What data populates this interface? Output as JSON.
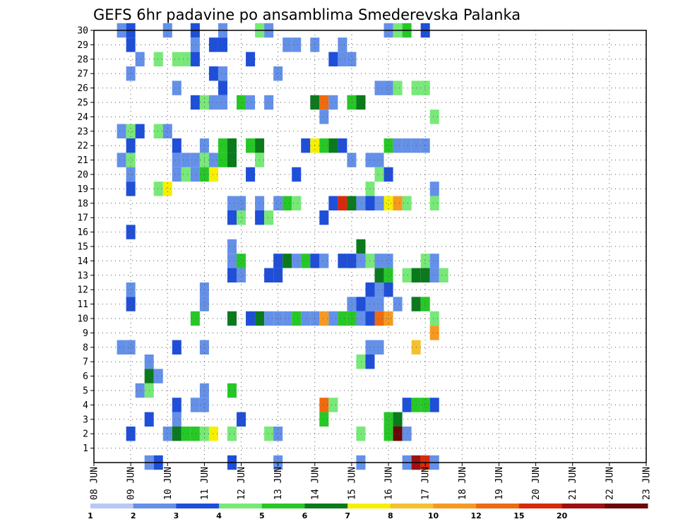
{
  "chart_data": {
    "type": "heatmap",
    "title": "GEFS 6hr padavine po ansamblima Smederevska Palanka",
    "xlabel": "",
    "ylabel": "",
    "x_ticks": [
      "08 JUN",
      "09 JUN",
      "10 JUN",
      "11 JUN",
      "12 JUN",
      "13 JUN",
      "14 JUN",
      "15 JUN",
      "16 JUN",
      "17 JUN",
      "18 JUN",
      "19 JUN",
      "20 JUN",
      "21 JUN",
      "22 JUN",
      "23 JUN"
    ],
    "y_ticks": [
      "1",
      "2",
      "3",
      "4",
      "5",
      "6",
      "7",
      "8",
      "9",
      "10",
      "11",
      "12",
      "13",
      "14",
      "15",
      "16",
      "17",
      "18",
      "19",
      "20",
      "21",
      "22",
      "23",
      "24",
      "25",
      "26",
      "27",
      "28",
      "29",
      "30"
    ],
    "xlim": [
      0,
      60
    ],
    "ylim": [
      0,
      30
    ],
    "grid": true,
    "color_scale": {
      "levels": [
        "1",
        "2",
        "3",
        "4",
        "5",
        "6",
        "7",
        "8",
        "10",
        "12",
        "15",
        "20"
      ],
      "colors": [
        "#b7c9f5",
        "#6490e8",
        "#1f4fd8",
        "#78e878",
        "#26c826",
        "#0a7a1c",
        "#f6f000",
        "#f5c030",
        "#f59a20",
        "#f06a10",
        "#d82a0a",
        "#a01010",
        "#6a0808"
      ]
    },
    "cells": [
      [
        3,
        30,
        1
      ],
      [
        4,
        30,
        2
      ],
      [
        8,
        30,
        1
      ],
      [
        11,
        30,
        2
      ],
      [
        14,
        30,
        1
      ],
      [
        18,
        30,
        3
      ],
      [
        19,
        30,
        1
      ],
      [
        32,
        30,
        1
      ],
      [
        33,
        30,
        3
      ],
      [
        34,
        30,
        4
      ],
      [
        36,
        30,
        2
      ],
      [
        4,
        29,
        2
      ],
      [
        11,
        29,
        1
      ],
      [
        13,
        29,
        2
      ],
      [
        14,
        29,
        2
      ],
      [
        21,
        29,
        1
      ],
      [
        22,
        29,
        1
      ],
      [
        24,
        29,
        1
      ],
      [
        27,
        29,
        1
      ],
      [
        5,
        28,
        1
      ],
      [
        7,
        28,
        3
      ],
      [
        9,
        28,
        3
      ],
      [
        10,
        28,
        3
      ],
      [
        11,
        28,
        2
      ],
      [
        17,
        28,
        2
      ],
      [
        26,
        28,
        2
      ],
      [
        27,
        28,
        1
      ],
      [
        28,
        28,
        1
      ],
      [
        4,
        27,
        1
      ],
      [
        13,
        27,
        2
      ],
      [
        14,
        27,
        1
      ],
      [
        20,
        27,
        1
      ],
      [
        9,
        26,
        1
      ],
      [
        14,
        26,
        2
      ],
      [
        31,
        26,
        1
      ],
      [
        32,
        26,
        1
      ],
      [
        33,
        26,
        3
      ],
      [
        35,
        26,
        3
      ],
      [
        36,
        26,
        3
      ],
      [
        11,
        25,
        2
      ],
      [
        12,
        25,
        3
      ],
      [
        13,
        25,
        1
      ],
      [
        14,
        25,
        1
      ],
      [
        16,
        25,
        4
      ],
      [
        17,
        25,
        1
      ],
      [
        19,
        25,
        1
      ],
      [
        24,
        25,
        5
      ],
      [
        25,
        25,
        9
      ],
      [
        26,
        25,
        1
      ],
      [
        28,
        25,
        4
      ],
      [
        29,
        25,
        5
      ],
      [
        25,
        24,
        1
      ],
      [
        37,
        24,
        3
      ],
      [
        3,
        23,
        1
      ],
      [
        4,
        23,
        3
      ],
      [
        5,
        23,
        2
      ],
      [
        7,
        23,
        3
      ],
      [
        8,
        23,
        1
      ],
      [
        4,
        22,
        2
      ],
      [
        9,
        22,
        2
      ],
      [
        12,
        22,
        1
      ],
      [
        14,
        22,
        4
      ],
      [
        15,
        22,
        5
      ],
      [
        17,
        22,
        4
      ],
      [
        18,
        22,
        5
      ],
      [
        23,
        22,
        2
      ],
      [
        24,
        22,
        6
      ],
      [
        25,
        22,
        4
      ],
      [
        26,
        22,
        5
      ],
      [
        27,
        22,
        2
      ],
      [
        32,
        22,
        4
      ],
      [
        33,
        22,
        1
      ],
      [
        34,
        22,
        1
      ],
      [
        35,
        22,
        1
      ],
      [
        36,
        22,
        1
      ],
      [
        3,
        21,
        1
      ],
      [
        4,
        21,
        3
      ],
      [
        9,
        21,
        1
      ],
      [
        10,
        21,
        1
      ],
      [
        11,
        21,
        1
      ],
      [
        12,
        21,
        3
      ],
      [
        13,
        21,
        1
      ],
      [
        14,
        21,
        4
      ],
      [
        15,
        21,
        5
      ],
      [
        18,
        21,
        3
      ],
      [
        28,
        21,
        1
      ],
      [
        30,
        21,
        1
      ],
      [
        31,
        21,
        1
      ],
      [
        4,
        20,
        1
      ],
      [
        9,
        20,
        1
      ],
      [
        10,
        20,
        3
      ],
      [
        11,
        20,
        1
      ],
      [
        12,
        20,
        4
      ],
      [
        13,
        20,
        6
      ],
      [
        17,
        20,
        2
      ],
      [
        22,
        20,
        2
      ],
      [
        31,
        20,
        3
      ],
      [
        32,
        20,
        2
      ],
      [
        4,
        19,
        2
      ],
      [
        7,
        19,
        3
      ],
      [
        8,
        19,
        6
      ],
      [
        30,
        19,
        3
      ],
      [
        37,
        19,
        1
      ],
      [
        15,
        18,
        1
      ],
      [
        16,
        18,
        1
      ],
      [
        18,
        18,
        1
      ],
      [
        20,
        18,
        1
      ],
      [
        21,
        18,
        4
      ],
      [
        22,
        18,
        3
      ],
      [
        26,
        18,
        2
      ],
      [
        27,
        18,
        10
      ],
      [
        28,
        18,
        5
      ],
      [
        29,
        18,
        1
      ],
      [
        30,
        18,
        2
      ],
      [
        31,
        18,
        1
      ],
      [
        32,
        18,
        6
      ],
      [
        33,
        18,
        8
      ],
      [
        34,
        18,
        3
      ],
      [
        37,
        18,
        3
      ],
      [
        15,
        17,
        2
      ],
      [
        16,
        17,
        3
      ],
      [
        18,
        17,
        2
      ],
      [
        19,
        17,
        3
      ],
      [
        25,
        17,
        2
      ],
      [
        4,
        16,
        2
      ],
      [
        15,
        15,
        1
      ],
      [
        29,
        15,
        5
      ],
      [
        15,
        14,
        1
      ],
      [
        16,
        14,
        4
      ],
      [
        20,
        14,
        2
      ],
      [
        21,
        14,
        5
      ],
      [
        22,
        14,
        1
      ],
      [
        23,
        14,
        4
      ],
      [
        24,
        14,
        2
      ],
      [
        25,
        14,
        1
      ],
      [
        27,
        14,
        2
      ],
      [
        28,
        14,
        2
      ],
      [
        29,
        14,
        1
      ],
      [
        30,
        14,
        3
      ],
      [
        31,
        14,
        1
      ],
      [
        32,
        14,
        1
      ],
      [
        36,
        14,
        3
      ],
      [
        37,
        14,
        1
      ],
      [
        15,
        13,
        2
      ],
      [
        16,
        13,
        1
      ],
      [
        19,
        13,
        2
      ],
      [
        20,
        13,
        2
      ],
      [
        31,
        13,
        5
      ],
      [
        32,
        13,
        4
      ],
      [
        34,
        13,
        3
      ],
      [
        35,
        13,
        5
      ],
      [
        36,
        13,
        5
      ],
      [
        37,
        13,
        1
      ],
      [
        38,
        13,
        3
      ],
      [
        4,
        12,
        1
      ],
      [
        12,
        12,
        1
      ],
      [
        30,
        12,
        2
      ],
      [
        31,
        12,
        1
      ],
      [
        32,
        12,
        2
      ],
      [
        4,
        11,
        2
      ],
      [
        12,
        11,
        1
      ],
      [
        28,
        11,
        1
      ],
      [
        29,
        11,
        2
      ],
      [
        30,
        11,
        1
      ],
      [
        31,
        11,
        1
      ],
      [
        33,
        11,
        1
      ],
      [
        35,
        11,
        5
      ],
      [
        36,
        11,
        4
      ],
      [
        11,
        10,
        4
      ],
      [
        15,
        10,
        5
      ],
      [
        17,
        10,
        2
      ],
      [
        18,
        10,
        5
      ],
      [
        19,
        10,
        1
      ],
      [
        20,
        10,
        1
      ],
      [
        21,
        10,
        1
      ],
      [
        22,
        10,
        4
      ],
      [
        23,
        10,
        1
      ],
      [
        24,
        10,
        1
      ],
      [
        25,
        10,
        8
      ],
      [
        26,
        10,
        1
      ],
      [
        27,
        10,
        4
      ],
      [
        28,
        10,
        4
      ],
      [
        29,
        10,
        1
      ],
      [
        30,
        10,
        2
      ],
      [
        31,
        10,
        9
      ],
      [
        32,
        10,
        8
      ],
      [
        37,
        10,
        3
      ],
      [
        37,
        9,
        8
      ],
      [
        3,
        8,
        1
      ],
      [
        4,
        8,
        1
      ],
      [
        9,
        8,
        2
      ],
      [
        12,
        8,
        1
      ],
      [
        30,
        8,
        1
      ],
      [
        31,
        8,
        1
      ],
      [
        35,
        8,
        7
      ],
      [
        6,
        7,
        1
      ],
      [
        29,
        7,
        3
      ],
      [
        30,
        7,
        2
      ],
      [
        6,
        6,
        5
      ],
      [
        7,
        6,
        1
      ],
      [
        5,
        5,
        1
      ],
      [
        6,
        5,
        3
      ],
      [
        12,
        5,
        1
      ],
      [
        15,
        5,
        4
      ],
      [
        9,
        4,
        2
      ],
      [
        11,
        4,
        1
      ],
      [
        12,
        4,
        1
      ],
      [
        25,
        4,
        9
      ],
      [
        26,
        4,
        3
      ],
      [
        34,
        4,
        2
      ],
      [
        35,
        4,
        4
      ],
      [
        36,
        4,
        4
      ],
      [
        37,
        4,
        2
      ],
      [
        6,
        3,
        2
      ],
      [
        9,
        3,
        1
      ],
      [
        16,
        3,
        2
      ],
      [
        25,
        3,
        4
      ],
      [
        32,
        3,
        4
      ],
      [
        33,
        3,
        5
      ],
      [
        4,
        2,
        2
      ],
      [
        8,
        2,
        1
      ],
      [
        9,
        2,
        5
      ],
      [
        10,
        2,
        4
      ],
      [
        11,
        2,
        4
      ],
      [
        12,
        2,
        3
      ],
      [
        13,
        2,
        6
      ],
      [
        15,
        2,
        3
      ],
      [
        19,
        2,
        3
      ],
      [
        20,
        2,
        1
      ],
      [
        29,
        2,
        3
      ],
      [
        32,
        2,
        4
      ],
      [
        33,
        2,
        12
      ],
      [
        34,
        2,
        1
      ],
      [
        6,
        0,
        1
      ],
      [
        7,
        0,
        2
      ],
      [
        15,
        0,
        2
      ],
      [
        20,
        0,
        1
      ],
      [
        29,
        0,
        1
      ],
      [
        34,
        0,
        1
      ],
      [
        35,
        0,
        11
      ],
      [
        36,
        0,
        10
      ],
      [
        37,
        0,
        1
      ]
    ]
  }
}
